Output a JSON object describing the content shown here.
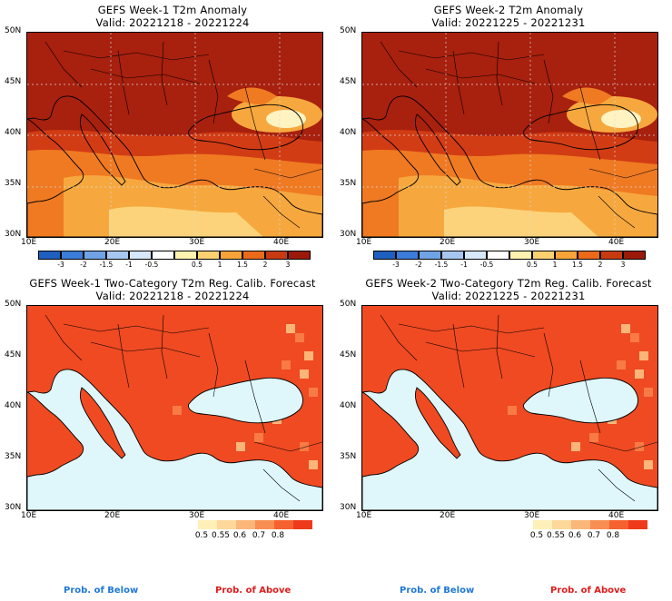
{
  "panels": [
    {
      "id": "w1-anom",
      "title": "GEFS Week-1 T2m Anomaly",
      "valid": "Valid: 20221218 - 20221224"
    },
    {
      "id": "w2-anom",
      "title": "GEFS Week-2 T2m Anomaly",
      "valid": "Valid: 20221225 - 20221231"
    },
    {
      "id": "w1-prob",
      "title": "GEFS Week-1 Two-Category T2m Reg. Calib. Forecast",
      "valid": "Valid: 20221218 - 20221224"
    },
    {
      "id": "w2-prob",
      "title": "GEFS Week-2 Two-Category T2m Reg. Calib. Forecast",
      "valid": "Valid: 20221225 - 20221231"
    }
  ],
  "axes": {
    "lat_labels": [
      "50N",
      "45N",
      "40N",
      "35N",
      "30N"
    ],
    "lon_labels": [
      "10E",
      "20E",
      "30E",
      "40E"
    ]
  },
  "anomaly_colorbar": {
    "labels": [
      "-3",
      "-2",
      "-1.5",
      "-1",
      "-0.5",
      "0.5",
      "1",
      "1.5",
      "2",
      "3"
    ],
    "colors": [
      "#1f5fbf",
      "#3b7dd8",
      "#6fa3e6",
      "#a6c8f0",
      "#d6e8fa",
      "#ffffff",
      "#fff2b0",
      "#fcd170",
      "#f8a43a",
      "#ea6a1a",
      "#c83b10",
      "#9c1a0a"
    ]
  },
  "prob_colorbar": {
    "labels": [
      "0.5",
      "0.55",
      "0.6",
      "0.7",
      "0.8"
    ],
    "colors": [
      "#fff0b8",
      "#fdd89a",
      "#fbb779",
      "#f98e52",
      "#f5612f",
      "#ee3a1b"
    ]
  },
  "footer": {
    "below": "Prob. of Below",
    "above": "Prob. of Above",
    "below_color": "#1f78d8",
    "above_color": "#e01b1b"
  },
  "map_colors": {
    "sea_prob": "#dff7fb",
    "dark_red": "#a8200e",
    "red": "#d23c14",
    "orange": "#ef7a22",
    "light_orange": "#f6a83e",
    "yellow": "#fcd37a",
    "pale": "#fff3c2",
    "prob_red": "#ef4a22",
    "prob_orange": "#f87a44",
    "prob_peach": "#fbb579"
  }
}
